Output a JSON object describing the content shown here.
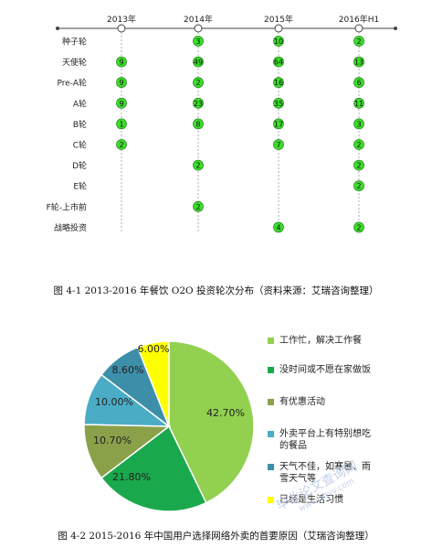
{
  "figure1": {
    "years": [
      "2013年",
      "2014年",
      "2015年",
      "2016年H1"
    ],
    "rounds": [
      "种子轮",
      "天使轮",
      "Pre-A轮",
      "A轮",
      "B轮",
      "C轮",
      "D轮",
      "E轮",
      "F轮-上市前",
      "战略投资"
    ],
    "counts": [
      [
        null,
        3,
        10,
        2
      ],
      [
        9,
        49,
        64,
        13
      ],
      [
        9,
        2,
        16,
        6
      ],
      [
        9,
        23,
        35,
        11
      ],
      [
        1,
        8,
        17,
        3
      ],
      [
        2,
        null,
        7,
        2
      ],
      [
        null,
        2,
        null,
        2
      ],
      [
        null,
        null,
        null,
        2
      ],
      [
        null,
        2,
        null,
        null
      ],
      [
        null,
        null,
        4,
        2
      ]
    ],
    "colors": {
      "bubble": "#3cdd2b",
      "bubble_border": "#2a8f22",
      "axis": "#444444"
    },
    "caption": "图 4-1  2013-2016 年餐饮 O2O 投资轮次分布（资料来源：艾瑞咨询整理）"
  },
  "chart_data": {
    "type": "pie",
    "labels": [
      "工作忙，解决工作餐",
      "没时间或不愿在家做饭",
      "有优惠活动",
      "外卖平台上有特别想吃的餐品",
      "天气不佳，如寒暑、雨雪天气等",
      "已经是生活习惯"
    ],
    "values": [
      42.7,
      21.8,
      10.7,
      10.0,
      8.6,
      6.0
    ],
    "value_labels": [
      "42.70%",
      "21.80%",
      "10.70%",
      "10.00%",
      "8.60%",
      "6.00%"
    ],
    "colors": [
      "#92d050",
      "#1aa84c",
      "#8aa14a",
      "#4bacc6",
      "#3d8ea8",
      "#ffff00"
    ],
    "legend": [
      "工作忙，解决工作餐",
      "没时间或不愿在家做饭",
      "有优惠活动",
      "外卖平台上有特别想吃的餐品",
      "天气不佳，如寒暑、雨雪天气等",
      "已经是生活习惯"
    ],
    "legend_position": "right",
    "caption": "图 4-2 2015-2016 年中国用户选择网络外卖的首要原因（艾瑞咨询整理）"
  },
  "watermark": {
    "line1": "毕业论文查询网",
    "line2": "www.abvv.com"
  }
}
